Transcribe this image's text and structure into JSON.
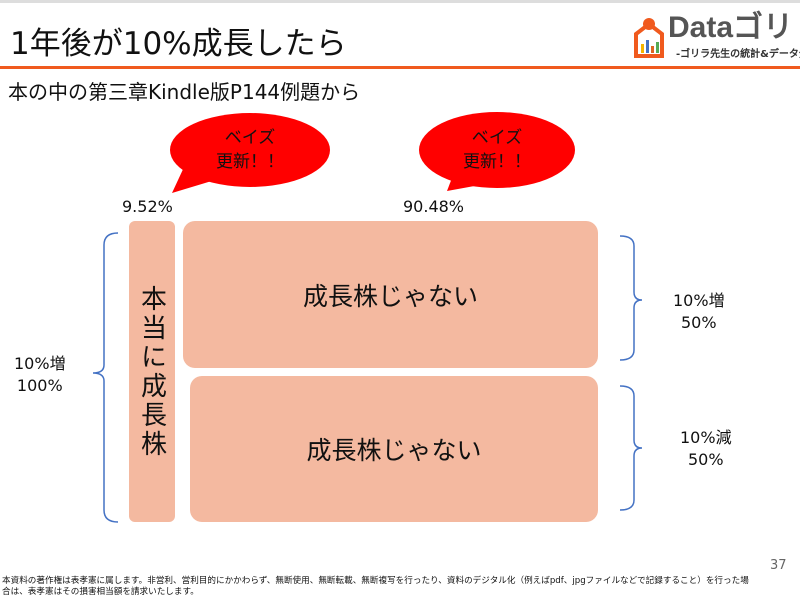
{
  "title": "1年後が10%成長したら",
  "subtitle": "本の中の第三章Kindle版P144例題から",
  "logo": {
    "main": "Dataゴリ",
    "sub": "-ゴリラ先生の統計&データ分"
  },
  "bubbles": [
    {
      "line1": "ベイズ",
      "line2": "更新！！"
    },
    {
      "line1": "ベイズ",
      "line2": "更新！！"
    }
  ],
  "percents": {
    "left": "9.52%",
    "right": "90.48%"
  },
  "boxes": {
    "tall": "本当に成長株",
    "top": "成長株じゃない",
    "bottom": "成長株じゃない"
  },
  "labels": {
    "left": {
      "line1": "10%増",
      "line2": "100%"
    },
    "right_top": {
      "line1": "10%増",
      "line2": "50%"
    },
    "right_bottom": {
      "line1": "10%減",
      "line2": "50%"
    }
  },
  "colors": {
    "accent": "#f05a1e",
    "bubble": "#ff0000",
    "box": "#f4b9a0",
    "brace": "#4472c4"
  },
  "page_number": "37",
  "footer": "本資料の著作権は表孝憲に属します。非営利、営利目的にかかわらず、無断使用、無断転載、無断複写を行ったり、資料のデジタル化（例えばpdf、jpgファイルなどで記録すること）を行った場合は、表孝憲はその損害相当額を請求いたします。"
}
